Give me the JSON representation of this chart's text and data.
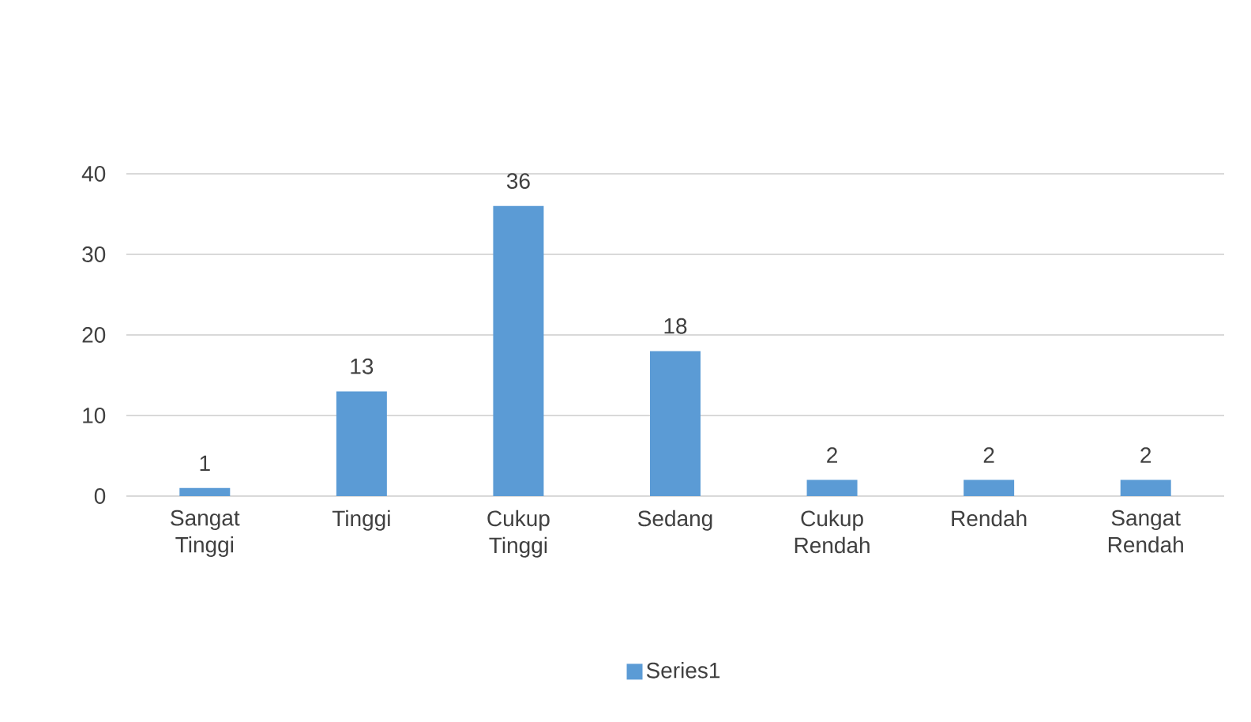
{
  "chart_data": {
    "type": "bar",
    "categories": [
      "Sangat Tinggi",
      "Tinggi",
      "Cukup Tinggi",
      "Sedang",
      "Cukup Rendah",
      "Rendah",
      "Sangat Rendah"
    ],
    "series": [
      {
        "name": "Series1",
        "color": "#5b9bd5",
        "values": [
          1,
          13,
          36,
          18,
          2,
          2,
          2
        ]
      }
    ],
    "ylim": [
      0,
      40
    ],
    "yticks": [
      0,
      10,
      20,
      30,
      40
    ],
    "grid": "y",
    "legend": "bottom",
    "data_labels": true
  }
}
